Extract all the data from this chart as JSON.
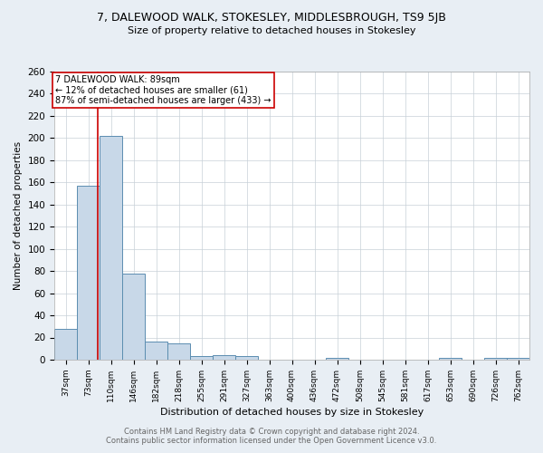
{
  "title": "7, DALEWOOD WALK, STOKESLEY, MIDDLESBROUGH, TS9 5JB",
  "subtitle": "Size of property relative to detached houses in Stokesley",
  "xlabel": "Distribution of detached houses by size in Stokesley",
  "ylabel": "Number of detached properties",
  "categories": [
    "37sqm",
    "73sqm",
    "110sqm",
    "146sqm",
    "182sqm",
    "218sqm",
    "255sqm",
    "291sqm",
    "327sqm",
    "363sqm",
    "400sqm",
    "436sqm",
    "472sqm",
    "508sqm",
    "545sqm",
    "581sqm",
    "617sqm",
    "653sqm",
    "690sqm",
    "726sqm",
    "762sqm"
  ],
  "values": [
    28,
    157,
    202,
    78,
    16,
    15,
    3,
    4,
    3,
    0,
    0,
    0,
    2,
    0,
    0,
    0,
    0,
    2,
    0,
    2,
    2
  ],
  "bar_color": "#c8d8e8",
  "bar_edge_color": "#5b8db0",
  "marker_line_color": "#cc0000",
  "annotation_box_edge": "#cc0000",
  "marker_label": "7 DALEWOOD WALK: 89sqm",
  "annotation_line1": "← 12% of detached houses are smaller (61)",
  "annotation_line2": "87% of semi-detached houses are larger (433) →",
  "ylim": [
    0,
    260
  ],
  "yticks": [
    0,
    20,
    40,
    60,
    80,
    100,
    120,
    140,
    160,
    180,
    200,
    220,
    240,
    260
  ],
  "footer_line1": "Contains HM Land Registry data © Crown copyright and database right 2024.",
  "footer_line2": "Contains public sector information licensed under the Open Government Licence v3.0.",
  "bg_color": "#e8eef4",
  "plot_bg_color": "#ffffff",
  "grid_color": "#c8d0d8",
  "red_line_x": 1.43
}
